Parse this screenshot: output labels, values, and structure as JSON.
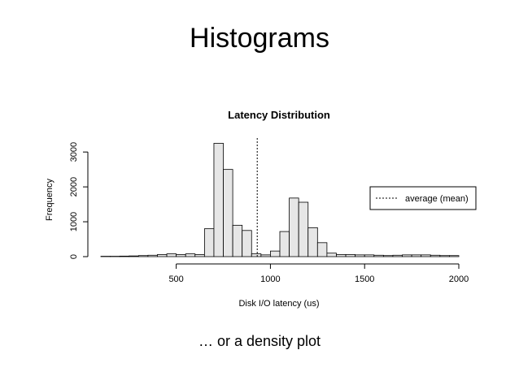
{
  "slide": {
    "title": "Histograms",
    "caption": "… or a density plot"
  },
  "chart_data": {
    "type": "bar",
    "title": "Latency Distribution",
    "xlabel": "Disk I/O latency (us)",
    "ylabel": "Frequency",
    "xlim": [
      100,
      2000
    ],
    "ylim": [
      0,
      3300
    ],
    "x_ticks": [
      500,
      1000,
      1500,
      2000
    ],
    "y_ticks": [
      0,
      1000,
      2000,
      3000
    ],
    "bin_width": 50,
    "bins": [
      {
        "start": 100,
        "value": 10
      },
      {
        "start": 150,
        "value": 10
      },
      {
        "start": 200,
        "value": 15
      },
      {
        "start": 250,
        "value": 20
      },
      {
        "start": 300,
        "value": 30
      },
      {
        "start": 350,
        "value": 40
      },
      {
        "start": 400,
        "value": 60
      },
      {
        "start": 450,
        "value": 80
      },
      {
        "start": 500,
        "value": 60
      },
      {
        "start": 550,
        "value": 80
      },
      {
        "start": 600,
        "value": 60
      },
      {
        "start": 650,
        "value": 800
      },
      {
        "start": 700,
        "value": 3250
      },
      {
        "start": 750,
        "value": 2500
      },
      {
        "start": 800,
        "value": 900
      },
      {
        "start": 850,
        "value": 750
      },
      {
        "start": 900,
        "value": 80
      },
      {
        "start": 950,
        "value": 50
      },
      {
        "start": 1000,
        "value": 160
      },
      {
        "start": 1050,
        "value": 720
      },
      {
        "start": 1100,
        "value": 1680
      },
      {
        "start": 1150,
        "value": 1560
      },
      {
        "start": 1200,
        "value": 830
      },
      {
        "start": 1250,
        "value": 400
      },
      {
        "start": 1300,
        "value": 100
      },
      {
        "start": 1350,
        "value": 60
      },
      {
        "start": 1400,
        "value": 60
      },
      {
        "start": 1450,
        "value": 50
      },
      {
        "start": 1500,
        "value": 50
      },
      {
        "start": 1550,
        "value": 40
      },
      {
        "start": 1600,
        "value": 30
      },
      {
        "start": 1650,
        "value": 40
      },
      {
        "start": 1700,
        "value": 50
      },
      {
        "start": 1750,
        "value": 50
      },
      {
        "start": 1800,
        "value": 50
      },
      {
        "start": 1850,
        "value": 40
      },
      {
        "start": 1900,
        "value": 30
      },
      {
        "start": 1950,
        "value": 30
      }
    ],
    "mean_line": {
      "x": 930,
      "label": "average (mean)"
    },
    "legend_placement": "right",
    "grid": false,
    "colors": {
      "bar_fill": "#e6e6e6",
      "bar_stroke": "#000000"
    }
  }
}
